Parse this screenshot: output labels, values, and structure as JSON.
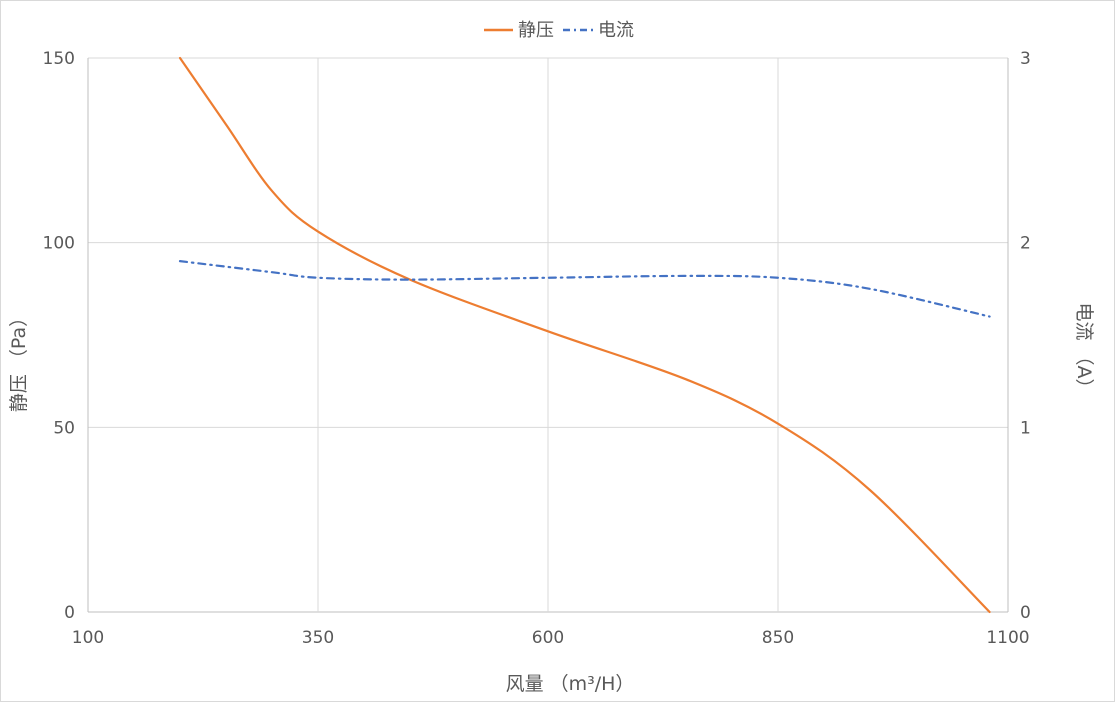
{
  "chart_data": {
    "type": "line",
    "title": "",
    "legend": {
      "position": "top",
      "entries": [
        "静压",
        "电流"
      ]
    },
    "xlabel": "风量 （m³/H）",
    "ylabel": "静压 （Pa）",
    "y2label": "电流 （A）",
    "xlim": [
      100,
      1100
    ],
    "ylim": [
      0,
      150
    ],
    "y2lim": [
      0,
      3
    ],
    "xticks": [
      100,
      350,
      600,
      850,
      1100
    ],
    "yticks": [
      0,
      50,
      100,
      150
    ],
    "y2ticks": [
      0,
      1,
      2,
      3
    ],
    "grid": true,
    "series": [
      {
        "name": "静压",
        "axis": "left",
        "color": "#ED7D31",
        "style": "solid",
        "x": [
          200,
          250,
          300,
          350,
          450,
          600,
          750,
          850,
          950,
          1080
        ],
        "y": [
          150,
          132,
          114,
          103,
          90,
          76,
          63,
          51,
          33,
          0
        ]
      },
      {
        "name": "电流",
        "axis": "right",
        "color": "#4472C4",
        "style": "dashdot",
        "x": [
          200,
          300,
          350,
          450,
          600,
          750,
          850,
          950,
          1080
        ],
        "y": [
          1.9,
          1.84,
          1.81,
          1.8,
          1.81,
          1.82,
          1.81,
          1.75,
          1.6
        ]
      }
    ]
  },
  "colors": {
    "grid": "#d9d9d9",
    "axis": "#bfbfbf",
    "text": "#595959"
  }
}
